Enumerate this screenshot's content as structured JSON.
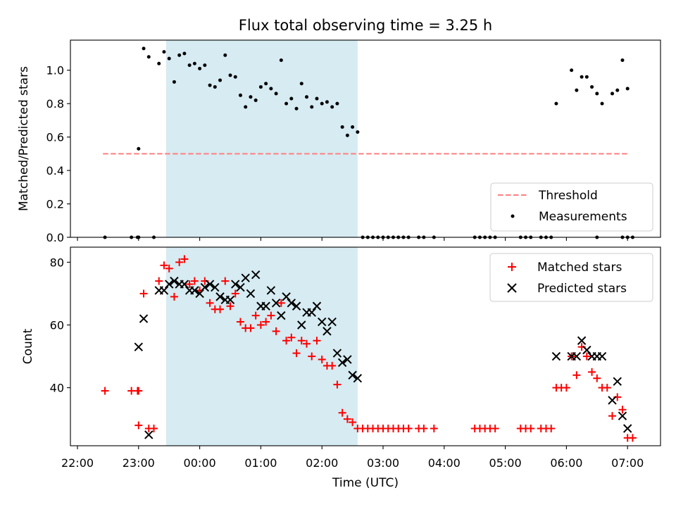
{
  "figure": {
    "title": "Flux total observing time = 3.25 h",
    "shaded_span": {
      "start": "23:27",
      "end": "02:35"
    }
  },
  "chart_data": [
    {
      "type": "scatter",
      "ylabel": "Matched/Predicted stars",
      "ylim": [
        0,
        1.18
      ],
      "yticks": [
        0.0,
        0.2,
        0.4,
        0.6,
        0.8,
        1.0
      ],
      "ytick_labels": [
        "0.0",
        "0.2",
        "0.4",
        "0.6",
        "0.8",
        "1.0"
      ],
      "xticks": [
        "22:00",
        "23:00",
        "00:00",
        "01:00",
        "02:00",
        "03:00",
        "04:00",
        "05:00",
        "06:00",
        "07:00"
      ],
      "show_xtick_labels": false,
      "legend": {
        "position": "lower-right",
        "entries": [
          {
            "label": "Threshold",
            "kind": "dashed-line",
            "color": "#ff7f7f"
          },
          {
            "label": "Measurements",
            "kind": "dot",
            "color": "#000000"
          }
        ]
      },
      "threshold": {
        "value": 0.5,
        "from": "22:25",
        "to": "07:00",
        "color": "#ff7f7f"
      },
      "measurements": [
        [
          "22:27",
          0.0
        ],
        [
          "22:53",
          0.0
        ],
        [
          "22:59",
          0.0
        ],
        [
          "23:00",
          0.0
        ],
        [
          "23:15",
          0.0
        ],
        [
          "23:00",
          0.53
        ],
        [
          "23:05",
          1.13
        ],
        [
          "23:10",
          1.08
        ],
        [
          "23:20",
          1.04
        ],
        [
          "23:25",
          1.11
        ],
        [
          "23:30",
          1.07
        ],
        [
          "23:35",
          0.93
        ],
        [
          "23:40",
          1.09
        ],
        [
          "23:45",
          1.1
        ],
        [
          "23:50",
          1.03
        ],
        [
          "23:55",
          1.04
        ],
        [
          "00:00",
          1.01
        ],
        [
          "00:05",
          1.03
        ],
        [
          "00:10",
          0.91
        ],
        [
          "00:15",
          0.9
        ],
        [
          "00:20",
          0.94
        ],
        [
          "00:25",
          1.09
        ],
        [
          "00:30",
          0.97
        ],
        [
          "00:35",
          0.96
        ],
        [
          "00:40",
          0.85
        ],
        [
          "00:45",
          0.78
        ],
        [
          "00:50",
          0.84
        ],
        [
          "00:55",
          0.82
        ],
        [
          "01:00",
          0.9
        ],
        [
          "01:05",
          0.92
        ],
        [
          "01:10",
          0.89
        ],
        [
          "01:15",
          0.86
        ],
        [
          "01:20",
          1.06
        ],
        [
          "01:25",
          0.8
        ],
        [
          "01:30",
          0.83
        ],
        [
          "01:35",
          0.77
        ],
        [
          "01:40",
          0.92
        ],
        [
          "01:45",
          0.84
        ],
        [
          "01:50",
          0.78
        ],
        [
          "01:55",
          0.83
        ],
        [
          "02:00",
          0.8
        ],
        [
          "02:05",
          0.81
        ],
        [
          "02:10",
          0.78
        ],
        [
          "02:15",
          0.8
        ],
        [
          "02:20",
          0.66
        ],
        [
          "02:25",
          0.61
        ],
        [
          "02:30",
          0.66
        ],
        [
          "02:35",
          0.63
        ],
        [
          "02:40",
          0.0
        ],
        [
          "02:45",
          0.0
        ],
        [
          "02:50",
          0.0
        ],
        [
          "02:55",
          0.0
        ],
        [
          "03:00",
          0.0
        ],
        [
          "03:05",
          0.0
        ],
        [
          "03:10",
          0.0
        ],
        [
          "03:15",
          0.0
        ],
        [
          "03:20",
          0.0
        ],
        [
          "03:25",
          0.0
        ],
        [
          "03:35",
          0.0
        ],
        [
          "03:40",
          0.0
        ],
        [
          "03:50",
          0.0
        ],
        [
          "04:30",
          0.0
        ],
        [
          "04:35",
          0.0
        ],
        [
          "04:40",
          0.0
        ],
        [
          "04:45",
          0.0
        ],
        [
          "04:50",
          0.0
        ],
        [
          "05:15",
          0.0
        ],
        [
          "05:20",
          0.0
        ],
        [
          "05:25",
          0.0
        ],
        [
          "05:35",
          0.0
        ],
        [
          "05:40",
          0.0
        ],
        [
          "05:45",
          0.0
        ],
        [
          "06:30",
          0.0
        ],
        [
          "06:55",
          0.0
        ],
        [
          "07:00",
          0.0
        ],
        [
          "07:05",
          0.0
        ],
        [
          "05:50",
          0.8
        ],
        [
          "06:05",
          1.0
        ],
        [
          "06:10",
          0.88
        ],
        [
          "06:15",
          0.96
        ],
        [
          "06:20",
          0.96
        ],
        [
          "06:25",
          0.9
        ],
        [
          "06:30",
          0.86
        ],
        [
          "06:35",
          0.8
        ],
        [
          "06:45",
          0.86
        ],
        [
          "06:50",
          0.88
        ],
        [
          "06:55",
          1.06
        ],
        [
          "07:00",
          0.89
        ]
      ]
    },
    {
      "type": "scatter",
      "xlabel": "Time (UTC)",
      "ylabel": "Count",
      "ylim": [
        21.5,
        84.8
      ],
      "yticks": [
        40,
        60,
        80
      ],
      "ytick_labels": [
        "40",
        "60",
        "80"
      ],
      "xticks": [
        "22:00",
        "23:00",
        "00:00",
        "01:00",
        "02:00",
        "03:00",
        "04:00",
        "05:00",
        "06:00",
        "07:00"
      ],
      "xtick_labels": [
        "22:00",
        "23:00",
        "00:00",
        "01:00",
        "02:00",
        "03:00",
        "04:00",
        "05:00",
        "06:00",
        "07:00"
      ],
      "legend": {
        "position": "upper-right",
        "entries": [
          {
            "label": "Matched stars",
            "kind": "plus",
            "color": "#ff0000"
          },
          {
            "label": "Predicted stars",
            "kind": "x",
            "color": "#000000"
          }
        ]
      },
      "series": [
        {
          "name": "Matched stars",
          "marker": "plus",
          "color": "#ff0000",
          "points": [
            [
              "22:27",
              39
            ],
            [
              "22:53",
              39
            ],
            [
              "22:59",
              39
            ],
            [
              "23:00",
              39
            ],
            [
              "23:00",
              28
            ],
            [
              "23:05",
              70
            ],
            [
              "23:10",
              27
            ],
            [
              "23:15",
              27
            ],
            [
              "23:20",
              74
            ],
            [
              "23:25",
              79
            ],
            [
              "23:30",
              78
            ],
            [
              "23:35",
              69
            ],
            [
              "23:40",
              80
            ],
            [
              "23:45",
              81
            ],
            [
              "23:50",
              73
            ],
            [
              "23:55",
              74
            ],
            [
              "00:00",
              71
            ],
            [
              "00:05",
              74
            ],
            [
              "00:10",
              67
            ],
            [
              "00:15",
              65
            ],
            [
              "00:20",
              65
            ],
            [
              "00:25",
              74
            ],
            [
              "00:30",
              66
            ],
            [
              "00:35",
              70
            ],
            [
              "00:40",
              61
            ],
            [
              "00:45",
              59
            ],
            [
              "00:50",
              59
            ],
            [
              "00:55",
              63
            ],
            [
              "01:00",
              60
            ],
            [
              "01:05",
              61
            ],
            [
              "01:10",
              63
            ],
            [
              "01:15",
              58
            ],
            [
              "01:20",
              67
            ],
            [
              "01:25",
              55
            ],
            [
              "01:30",
              56
            ],
            [
              "01:35",
              51
            ],
            [
              "01:40",
              55
            ],
            [
              "01:45",
              54
            ],
            [
              "01:50",
              50
            ],
            [
              "01:55",
              55
            ],
            [
              "02:00",
              49
            ],
            [
              "02:05",
              47
            ],
            [
              "02:10",
              47
            ],
            [
              "02:15",
              41
            ],
            [
              "02:20",
              32
            ],
            [
              "02:25",
              30
            ],
            [
              "02:30",
              29
            ],
            [
              "02:35",
              27
            ],
            [
              "02:40",
              27
            ],
            [
              "02:45",
              27
            ],
            [
              "02:50",
              27
            ],
            [
              "02:55",
              27
            ],
            [
              "03:00",
              27
            ],
            [
              "03:05",
              27
            ],
            [
              "03:10",
              27
            ],
            [
              "03:15",
              27
            ],
            [
              "03:20",
              27
            ],
            [
              "03:25",
              27
            ],
            [
              "03:35",
              27
            ],
            [
              "03:40",
              27
            ],
            [
              "03:50",
              27
            ],
            [
              "04:30",
              27
            ],
            [
              "04:35",
              27
            ],
            [
              "04:40",
              27
            ],
            [
              "04:45",
              27
            ],
            [
              "04:50",
              27
            ],
            [
              "05:15",
              27
            ],
            [
              "05:20",
              27
            ],
            [
              "05:25",
              27
            ],
            [
              "05:35",
              27
            ],
            [
              "05:40",
              27
            ],
            [
              "05:45",
              27
            ],
            [
              "05:50",
              40
            ],
            [
              "05:55",
              40
            ],
            [
              "06:00",
              40
            ],
            [
              "06:05",
              50
            ],
            [
              "06:10",
              44
            ],
            [
              "06:15",
              53
            ],
            [
              "06:20",
              50
            ],
            [
              "06:25",
              45
            ],
            [
              "06:30",
              43
            ],
            [
              "06:35",
              40
            ],
            [
              "06:40",
              40
            ],
            [
              "06:45",
              31
            ],
            [
              "06:50",
              37
            ],
            [
              "06:55",
              33
            ],
            [
              "07:00",
              24
            ],
            [
              "07:05",
              24
            ]
          ]
        },
        {
          "name": "Predicted stars",
          "marker": "x",
          "color": "#000000",
          "points": [
            [
              "23:00",
              53
            ],
            [
              "23:05",
              62
            ],
            [
              "23:10",
              25
            ],
            [
              "23:20",
              71
            ],
            [
              "23:25",
              71
            ],
            [
              "23:30",
              73
            ],
            [
              "23:35",
              74
            ],
            [
              "23:40",
              73
            ],
            [
              "23:45",
              73
            ],
            [
              "23:50",
              71
            ],
            [
              "23:55",
              71
            ],
            [
              "00:00",
              70
            ],
            [
              "00:05",
              72
            ],
            [
              "00:10",
              73
            ],
            [
              "00:15",
              72
            ],
            [
              "00:20",
              69
            ],
            [
              "00:25",
              68
            ],
            [
              "00:30",
              68
            ],
            [
              "00:35",
              73
            ],
            [
              "00:40",
              72
            ],
            [
              "00:45",
              75
            ],
            [
              "00:50",
              70
            ],
            [
              "00:55",
              76
            ],
            [
              "01:00",
              66
            ],
            [
              "01:05",
              66
            ],
            [
              "01:10",
              71
            ],
            [
              "01:15",
              67
            ],
            [
              "01:20",
              63
            ],
            [
              "01:25",
              69
            ],
            [
              "01:30",
              67
            ],
            [
              "01:35",
              66
            ],
            [
              "01:40",
              60
            ],
            [
              "01:45",
              64
            ],
            [
              "01:50",
              64
            ],
            [
              "01:55",
              66
            ],
            [
              "02:00",
              61
            ],
            [
              "02:05",
              58
            ],
            [
              "02:10",
              61
            ],
            [
              "02:15",
              51
            ],
            [
              "02:20",
              48
            ],
            [
              "02:25",
              49
            ],
            [
              "02:30",
              44
            ],
            [
              "02:35",
              43
            ],
            [
              "05:50",
              50
            ],
            [
              "06:05",
              50
            ],
            [
              "06:10",
              50
            ],
            [
              "06:15",
              55
            ],
            [
              "06:20",
              52
            ],
            [
              "06:25",
              50
            ],
            [
              "06:30",
              50
            ],
            [
              "06:35",
              50
            ],
            [
              "06:45",
              36
            ],
            [
              "06:50",
              42
            ],
            [
              "06:55",
              31
            ],
            [
              "07:00",
              27
            ]
          ]
        }
      ]
    }
  ]
}
